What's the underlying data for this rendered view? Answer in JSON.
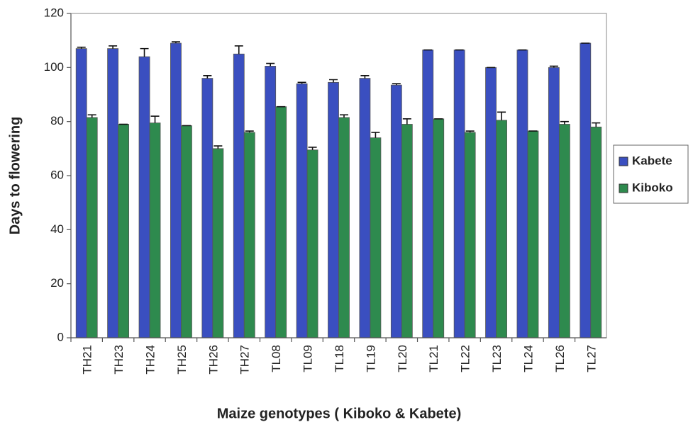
{
  "chart_data": {
    "type": "bar",
    "x_label": "Maize genotypes ( Kiboko & Kabete)",
    "y_label": "Days to flowering",
    "categories": [
      "TH21",
      "TH23",
      "TH24",
      "TH25",
      "TH26",
      "TH27",
      "TL08",
      "TL09",
      "TL18",
      "TL19",
      "TL20",
      "TL21",
      "TL22",
      "TL23",
      "TL24",
      "TL26",
      "TL27"
    ],
    "series": [
      {
        "name": "Kabete",
        "color": "#3a4fc0",
        "values": [
          107,
          107,
          104,
          109,
          96,
          105,
          100.5,
          94,
          94.5,
          96,
          93.5,
          106.5,
          106.5,
          100,
          106.5,
          100,
          109
        ],
        "errors": [
          0.5,
          1,
          3,
          0.5,
          1,
          3,
          1,
          0.5,
          1,
          1,
          0.5,
          0,
          0,
          0,
          0,
          0.5,
          0
        ]
      },
      {
        "name": "Kiboko",
        "color": "#2e8a4e",
        "values": [
          81.5,
          79,
          79.5,
          78.5,
          70,
          76,
          85.5,
          69.5,
          81.5,
          74,
          79,
          81,
          76,
          80.5,
          76.5,
          79,
          78
        ],
        "errors": [
          1,
          0,
          2.5,
          0,
          1,
          0.5,
          0,
          1,
          1,
          2,
          2,
          0,
          0.5,
          3,
          0,
          1,
          1.5
        ]
      }
    ],
    "ylim": [
      0,
      120
    ],
    "yticks": [
      0,
      20,
      40,
      60,
      80,
      100,
      120
    ],
    "legend": "right",
    "grid": false
  }
}
